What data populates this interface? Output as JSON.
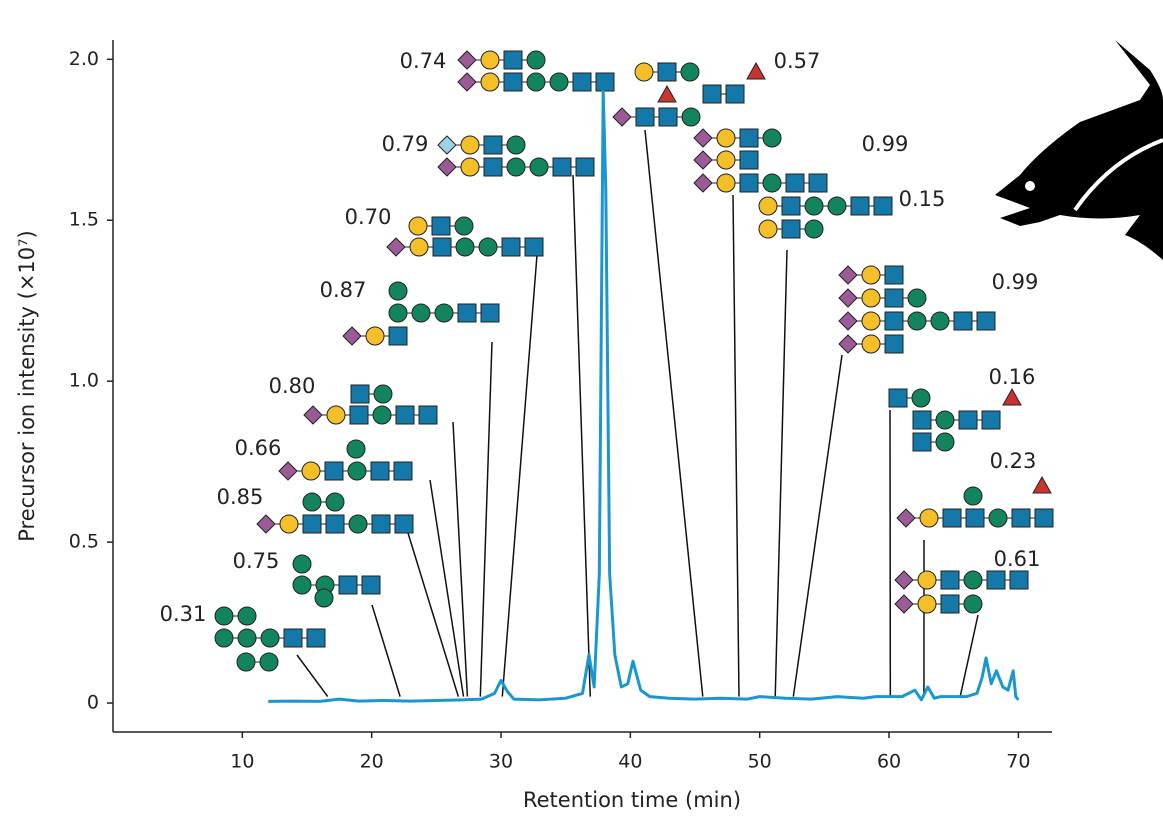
{
  "chart_data": {
    "type": "line",
    "ylabel": "Precursor ion intensity (×10⁷)",
    "xlabel": "Retention time (min)",
    "x": [
      12,
      14,
      16,
      17.5,
      19,
      21,
      23,
      25,
      27,
      28.5,
      29.5,
      30,
      30.5,
      31,
      33,
      35,
      36.3,
      36.8,
      37.2,
      37.6,
      37.9,
      38.1,
      38.4,
      38.8,
      39.3,
      39.8,
      40.2,
      40.8,
      41.5,
      43,
      45,
      47,
      49,
      50,
      52,
      54,
      56,
      58,
      59,
      61,
      62,
      62.5,
      63,
      63.5,
      64,
      66,
      66.8,
      67.2,
      67.5,
      67.9,
      68.3,
      68.8,
      69.2,
      69.6,
      69.8,
      70
    ],
    "series": [
      {
        "color": "#1a96d0",
        "values": [
          0.005,
          0.006,
          0.005,
          0.012,
          0.006,
          0.008,
          0.006,
          0.008,
          0.01,
          0.012,
          0.03,
          0.07,
          0.035,
          0.012,
          0.01,
          0.015,
          0.03,
          0.15,
          0.05,
          0.4,
          1.9,
          1.6,
          0.4,
          0.15,
          0.05,
          0.06,
          0.13,
          0.04,
          0.02,
          0.015,
          0.012,
          0.015,
          0.012,
          0.02,
          0.015,
          0.012,
          0.02,
          0.015,
          0.02,
          0.02,
          0.04,
          0.01,
          0.05,
          0.015,
          0.02,
          0.02,
          0.03,
          0.08,
          0.14,
          0.06,
          0.1,
          0.05,
          0.04,
          0.1,
          0.02,
          0.01
        ]
      }
    ],
    "xlim": [
      0,
      72.6
    ],
    "xticks": [
      10,
      20,
      30,
      40,
      50,
      60,
      70
    ],
    "ylim": [
      -0.09,
      2.06
    ],
    "yticks": [
      0,
      0.5,
      {
        "value": 1,
        "label": "1.0"
      },
      1.5,
      {
        "value": 2,
        "label": "2.0"
      }
    ],
    "annotations": [
      {
        "text": "0.31",
        "x": 16.6
      },
      {
        "text": "0.75",
        "x": 22.2
      },
      {
        "text": "0.85",
        "x": 26.7
      },
      {
        "text": "0.66",
        "x": 27.1
      },
      {
        "text": "0.80",
        "x": 27.4
      },
      {
        "text": "0.87",
        "x": 28.4
      },
      {
        "text": "0.70",
        "x": 30.1
      },
      {
        "text": "0.79",
        "x": 36.9
      },
      {
        "text": "0.74"
      },
      {
        "text": "0.57",
        "x": 45.6
      },
      {
        "text": "0.99",
        "x": 48.4
      },
      {
        "text": "0.15",
        "x": 51.2
      },
      {
        "text": "0.99",
        "x": 52.6
      },
      {
        "text": "0.16",
        "x": 60.1
      },
      {
        "text": "0.23",
        "x": 62.7
      },
      {
        "text": "0.61",
        "x": 65.5
      }
    ]
  }
}
